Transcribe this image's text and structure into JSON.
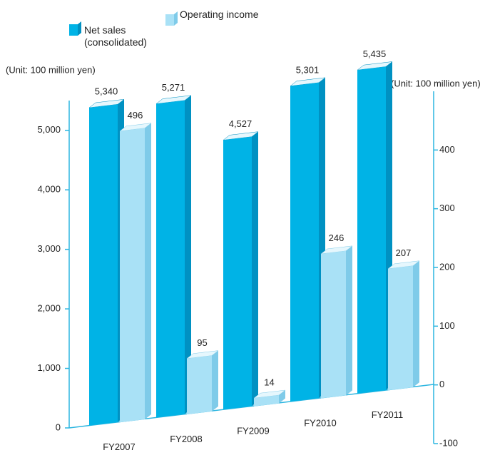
{
  "chart_data": {
    "type": "bar",
    "y_label": "(Unit: 100 million yen)",
    "y2_label": "(Unit: 100 million yen)",
    "categories": [
      "FY2007",
      "FY2008",
      "FY2009",
      "FY2010",
      "FY2011"
    ],
    "series": [
      {
        "name": "Net sales (consolidated)",
        "color": "#00b3e6",
        "side_color": "#0091c2",
        "values": [
          5340,
          5271,
          4527,
          5301,
          5435
        ],
        "value_labels": [
          "5,340",
          "5,271",
          "4,527",
          "5,301",
          "5,435"
        ]
      },
      {
        "name": "Operating income",
        "color": "#a9e1f6",
        "side_color": "#7fcbe9",
        "axis": "y2",
        "values": [
          496,
          95,
          14,
          246,
          207
        ]
      }
    ],
    "ylim": [
      0,
      5500
    ],
    "yticks": [
      0,
      {
        "value": 1000,
        "label": "1,000"
      },
      {
        "value": 2000,
        "label": "2,000"
      },
      {
        "value": 3000,
        "label": "3,000"
      },
      {
        "value": 4000,
        "label": "4,000"
      },
      {
        "value": 5000,
        "label": "5,000"
      }
    ],
    "y2lim": [
      -100,
      500
    ],
    "y2ticks": [
      -100,
      0,
      100,
      200,
      300,
      400
    ]
  }
}
